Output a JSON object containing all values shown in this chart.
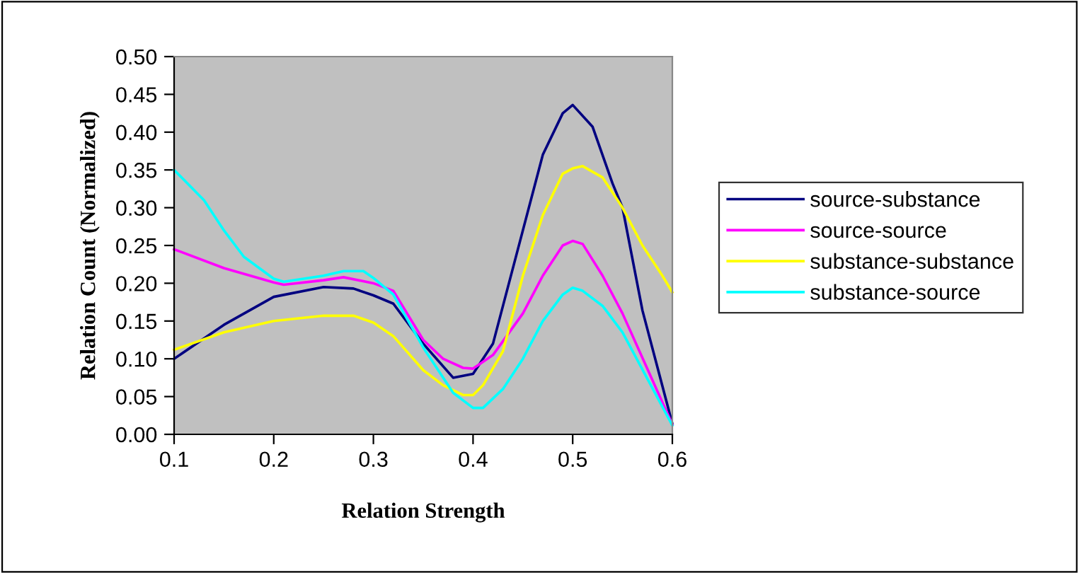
{
  "chart_data": {
    "type": "line",
    "xlabel": "Relation Strength",
    "ylabel": "Relation Count (Normalized)",
    "xlim": [
      0.1,
      0.6
    ],
    "xticks": [
      0.1,
      0.2,
      0.3,
      0.4,
      0.5,
      0.6
    ],
    "ylim": [
      0,
      0.5
    ],
    "yticks": [
      {
        "value": 0,
        "label": "0.00"
      },
      {
        "value": 0.05,
        "label": "0.05"
      },
      {
        "value": 0.1,
        "label": "0.10"
      },
      {
        "value": 0.15,
        "label": "0.15"
      },
      {
        "value": 0.2,
        "label": "0.20"
      },
      {
        "value": 0.25,
        "label": "0.25"
      },
      {
        "value": 0.3,
        "label": "0.30"
      },
      {
        "value": 0.35,
        "label": "0.35"
      },
      {
        "value": 0.4,
        "label": "0.40"
      },
      {
        "value": 0.45,
        "label": "0.45"
      },
      {
        "value": 0.5,
        "label": "0.50"
      }
    ],
    "grid": false,
    "legend": "right",
    "marker": "none",
    "line_style": "solid",
    "series": [
      {
        "name": "source-substance",
        "color": "#000080",
        "x": [
          0.1,
          0.15,
          0.2,
          0.25,
          0.28,
          0.3,
          0.32,
          0.35,
          0.38,
          0.4,
          0.42,
          0.45,
          0.47,
          0.49,
          0.5,
          0.52,
          0.54,
          0.55,
          0.57,
          0.6
        ],
        "values": [
          0.1,
          0.145,
          0.182,
          0.195,
          0.193,
          0.184,
          0.173,
          0.12,
          0.075,
          0.08,
          0.12,
          0.27,
          0.37,
          0.425,
          0.436,
          0.407,
          0.332,
          0.3,
          0.164,
          0.014
        ]
      },
      {
        "name": "source-source",
        "color": "#ff00ff",
        "x": [
          0.1,
          0.15,
          0.2,
          0.21,
          0.25,
          0.27,
          0.3,
          0.32,
          0.35,
          0.37,
          0.39,
          0.4,
          0.42,
          0.45,
          0.47,
          0.49,
          0.5,
          0.51,
          0.53,
          0.55,
          0.6
        ],
        "values": [
          0.245,
          0.22,
          0.201,
          0.198,
          0.204,
          0.208,
          0.2,
          0.19,
          0.125,
          0.1,
          0.088,
          0.087,
          0.105,
          0.16,
          0.21,
          0.25,
          0.256,
          0.252,
          0.21,
          0.16,
          0.013
        ]
      },
      {
        "name": "substance-substance",
        "color": "#ffff00",
        "x": [
          0.1,
          0.15,
          0.2,
          0.25,
          0.28,
          0.3,
          0.32,
          0.35,
          0.37,
          0.39,
          0.4,
          0.41,
          0.43,
          0.45,
          0.47,
          0.49,
          0.5,
          0.51,
          0.53,
          0.55,
          0.57,
          0.59,
          0.6
        ],
        "values": [
          0.112,
          0.135,
          0.15,
          0.157,
          0.157,
          0.148,
          0.13,
          0.085,
          0.065,
          0.052,
          0.052,
          0.065,
          0.11,
          0.21,
          0.29,
          0.345,
          0.352,
          0.355,
          0.34,
          0.3,
          0.25,
          0.21,
          0.188
        ]
      },
      {
        "name": "substance-source",
        "color": "#00ffff",
        "x": [
          0.1,
          0.13,
          0.15,
          0.17,
          0.2,
          0.21,
          0.25,
          0.27,
          0.29,
          0.3,
          0.32,
          0.35,
          0.38,
          0.4,
          0.41,
          0.43,
          0.45,
          0.47,
          0.49,
          0.5,
          0.51,
          0.53,
          0.55,
          0.6
        ],
        "values": [
          0.35,
          0.31,
          0.27,
          0.235,
          0.206,
          0.202,
          0.21,
          0.216,
          0.216,
          0.207,
          0.185,
          0.115,
          0.055,
          0.035,
          0.035,
          0.06,
          0.1,
          0.15,
          0.185,
          0.194,
          0.19,
          0.17,
          0.135,
          0.012
        ]
      }
    ]
  }
}
